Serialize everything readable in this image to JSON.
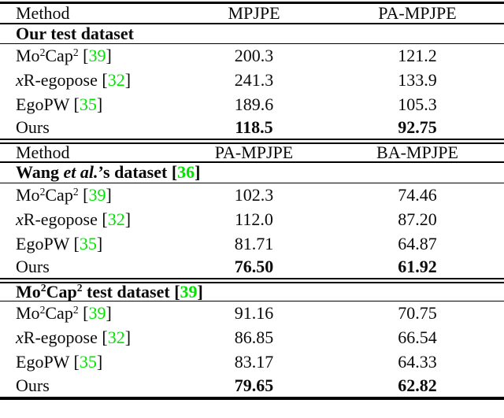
{
  "page": {
    "background": "#ffffff",
    "text_color": "#0a0a0a",
    "citation_color": "#00e400",
    "rule_color": "#000000"
  },
  "table": {
    "sections": [
      {
        "header": {
          "method": "Method",
          "col2": "MPJPE",
          "col3": "PA-MPJPE"
        },
        "group": [
          {
            "t": "Our test dataset"
          }
        ],
        "rows": [
          {
            "method": [
              {
                "t": "Mo"
              },
              {
                "t": "2",
                "sup": true
              },
              {
                "t": "Cap"
              },
              {
                "t": "2",
                "sup": true
              },
              {
                "t": " ["
              },
              {
                "t": "39",
                "cite": true
              },
              {
                "t": "]"
              }
            ],
            "col2": "200.3",
            "col3": "121.2",
            "best": false
          },
          {
            "method": [
              {
                "t": "x",
                "it": true
              },
              {
                "t": "R-egopose ["
              },
              {
                "t": "32",
                "cite": true
              },
              {
                "t": "]"
              }
            ],
            "col2": "241.3",
            "col3": "133.9",
            "best": false
          },
          {
            "method": [
              {
                "t": "EgoPW ["
              },
              {
                "t": "35",
                "cite": true
              },
              {
                "t": "]"
              }
            ],
            "col2": "189.6",
            "col3": "105.3",
            "best": false
          },
          {
            "method": [
              {
                "t": "Ours"
              }
            ],
            "col2": "118.5",
            "col3": "92.75",
            "best": true
          }
        ]
      },
      {
        "header": {
          "method": "Method",
          "col2": "PA-MPJPE",
          "col3": "BA-MPJPE"
        },
        "group": [
          {
            "t": "Wang "
          },
          {
            "t": "et al.",
            "it": true
          },
          {
            "t": "’s dataset ["
          },
          {
            "t": "36",
            "cite": true
          },
          {
            "t": "]"
          }
        ],
        "rows": [
          {
            "method": [
              {
                "t": "Mo"
              },
              {
                "t": "2",
                "sup": true
              },
              {
                "t": "Cap"
              },
              {
                "t": "2",
                "sup": true
              },
              {
                "t": " ["
              },
              {
                "t": "39",
                "cite": true
              },
              {
                "t": "]"
              }
            ],
            "col2": "102.3",
            "col3": "74.46",
            "best": false
          },
          {
            "method": [
              {
                "t": "x",
                "it": true
              },
              {
                "t": "R-egopose ["
              },
              {
                "t": "32",
                "cite": true
              },
              {
                "t": "]"
              }
            ],
            "col2": "112.0",
            "col3": "87.20",
            "best": false
          },
          {
            "method": [
              {
                "t": "EgoPW ["
              },
              {
                "t": "35",
                "cite": true
              },
              {
                "t": "]"
              }
            ],
            "col2": "81.71",
            "col3": "64.87",
            "best": false
          },
          {
            "method": [
              {
                "t": "Ours"
              }
            ],
            "col2": "76.50",
            "col3": "61.92",
            "best": true
          }
        ]
      },
      {
        "header": null,
        "group": [
          {
            "t": "Mo"
          },
          {
            "t": "2",
            "sup": true
          },
          {
            "t": "Cap"
          },
          {
            "t": "2",
            "sup": true
          },
          {
            "t": " test dataset ["
          },
          {
            "t": "39",
            "cite": true
          },
          {
            "t": "]"
          }
        ],
        "rows": [
          {
            "method": [
              {
                "t": "Mo"
              },
              {
                "t": "2",
                "sup": true
              },
              {
                "t": "Cap"
              },
              {
                "t": "2",
                "sup": true
              },
              {
                "t": " ["
              },
              {
                "t": "39",
                "cite": true
              },
              {
                "t": "]"
              }
            ],
            "col2": "91.16",
            "col3": "70.75",
            "best": false
          },
          {
            "method": [
              {
                "t": "x",
                "it": true
              },
              {
                "t": "R-egopose ["
              },
              {
                "t": "32",
                "cite": true
              },
              {
                "t": "]"
              }
            ],
            "col2": "86.85",
            "col3": "66.54",
            "best": false
          },
          {
            "method": [
              {
                "t": "EgoPW ["
              },
              {
                "t": "35",
                "cite": true
              },
              {
                "t": "]"
              }
            ],
            "col2": "83.17",
            "col3": "64.33",
            "best": false
          },
          {
            "method": [
              {
                "t": "Ours"
              }
            ],
            "col2": "79.65",
            "col3": "62.82",
            "best": true
          }
        ]
      }
    ]
  }
}
